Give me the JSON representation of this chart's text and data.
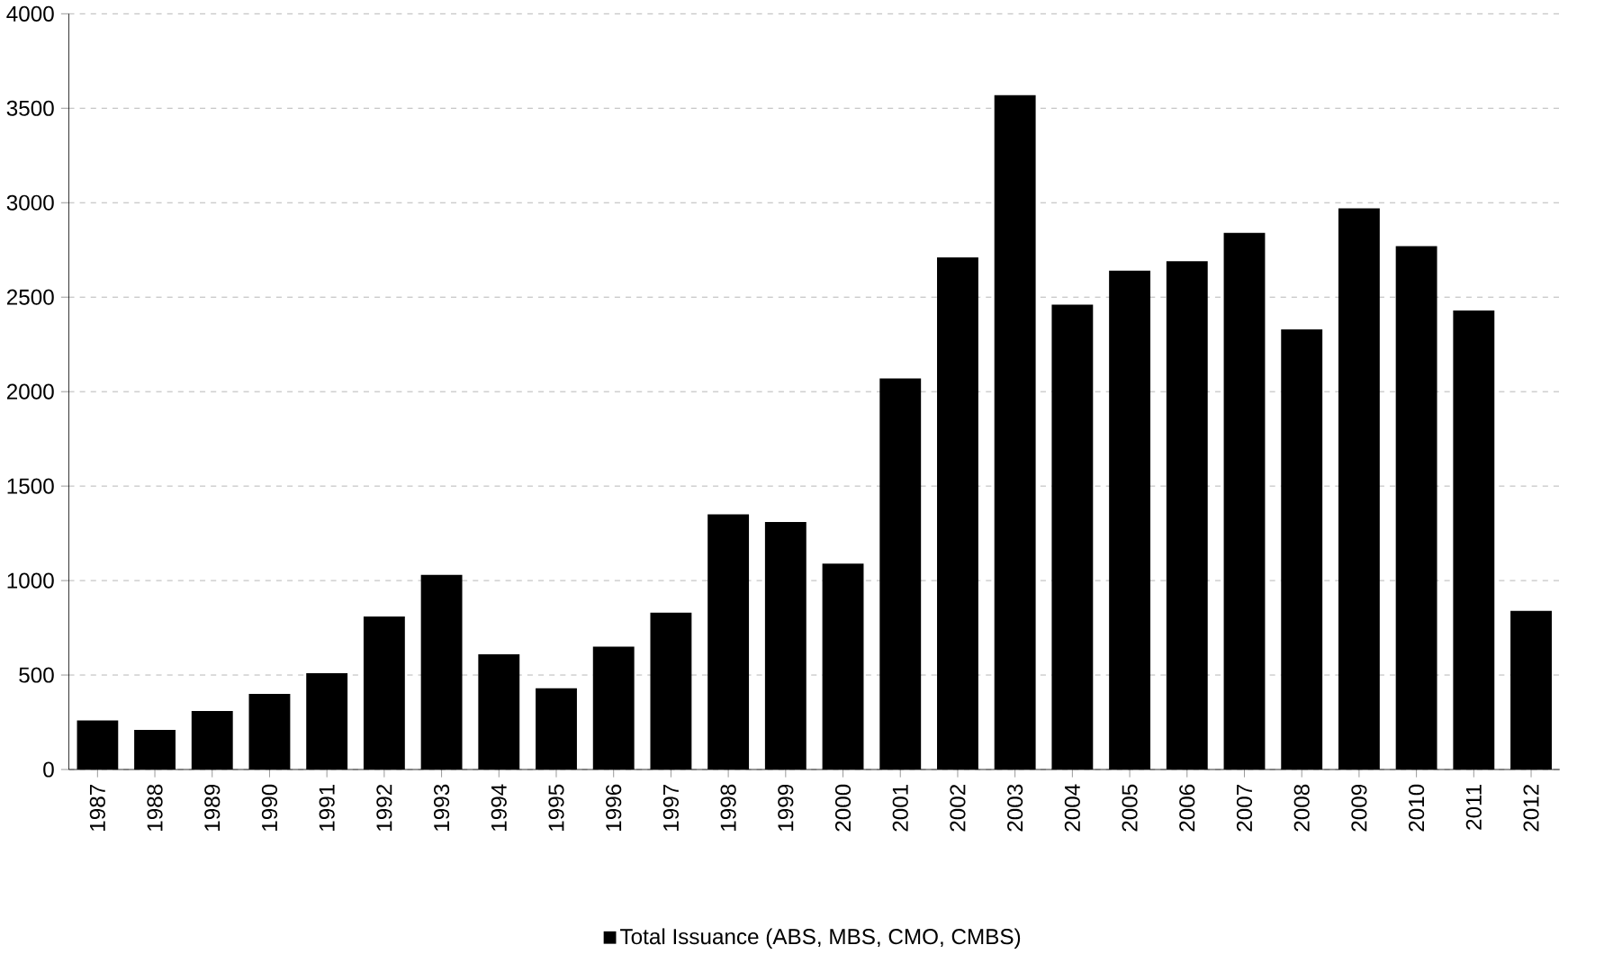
{
  "chart_data": {
    "type": "bar",
    "categories": [
      "1987",
      "1988",
      "1989",
      "1990",
      "1991",
      "1992",
      "1993",
      "1994",
      "1995",
      "1996",
      "1997",
      "1998",
      "1999",
      "2000",
      "2001",
      "2002",
      "2003",
      "2004",
      "2005",
      "2006",
      "2007",
      "2008",
      "2009",
      "2010",
      "2011",
      "2012"
    ],
    "series": [
      {
        "name": "Total Issuance (ABS, MBS, CMO, CMBS)",
        "color": "#000000",
        "values": [
          260,
          210,
          310,
          400,
          510,
          810,
          1030,
          610,
          430,
          650,
          830,
          1350,
          1310,
          1090,
          2070,
          2710,
          3570,
          2460,
          2640,
          2690,
          2840,
          2330,
          2970,
          2770,
          2430,
          840
        ]
      }
    ],
    "ylim": [
      0,
      4000
    ],
    "yticks": [
      0,
      500,
      1000,
      1500,
      2000,
      2500,
      3000,
      3500,
      4000
    ],
    "grid": "y",
    "legend": "bottom"
  }
}
